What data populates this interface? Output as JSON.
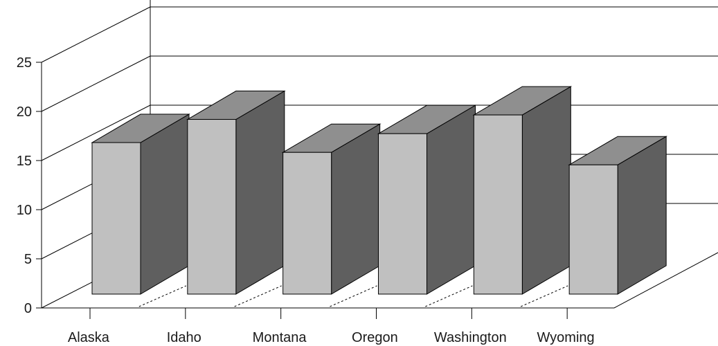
{
  "chart_data": {
    "type": "bar",
    "style": "3d",
    "title": "",
    "xlabel": "",
    "ylabel": "",
    "categories": [
      "Alaska",
      "Idaho",
      "Montana",
      "Oregon",
      "Washington",
      "Wyoming"
    ],
    "values": [
      17,
      19.6,
      15.9,
      18,
      20.1,
      14.5
    ],
    "ylim": [
      0,
      25
    ],
    "yticks": [
      0,
      5,
      10,
      15,
      20,
      25
    ],
    "ytick_labels": [
      "0",
      "5",
      "10",
      "15",
      "20",
      "25"
    ],
    "grid": true,
    "legend": "none",
    "colors": {
      "front": "#c0c0c0",
      "top": "#8f8f8f",
      "side": "#5f5f5f",
      "lines": "#000000"
    }
  }
}
